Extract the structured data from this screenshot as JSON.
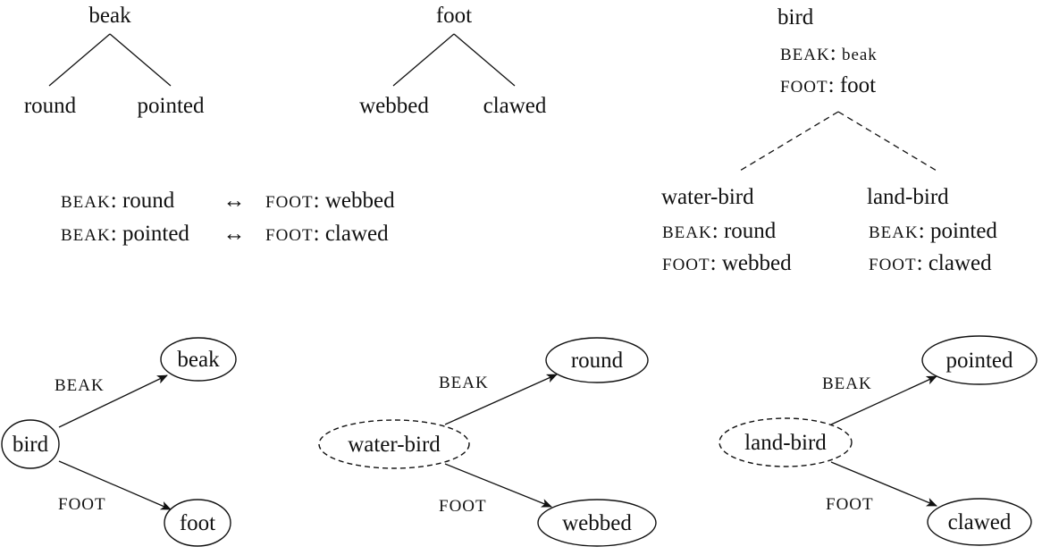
{
  "trees": {
    "beak": {
      "root": "beak",
      "left": "round",
      "right": "pointed"
    },
    "foot": {
      "root": "foot",
      "left": "webbed",
      "right": "clawed"
    },
    "bird": {
      "root": "bird",
      "features": [
        {
          "attr": "BEAK",
          "value": "beak"
        },
        {
          "attr": "FOOT",
          "value": "foot"
        }
      ],
      "children": [
        {
          "type": "water-bird",
          "features": [
            {
              "attr": "BEAK",
              "value": "round"
            },
            {
              "attr": "FOOT",
              "value": "webbed"
            }
          ]
        },
        {
          "type": "land-bird",
          "features": [
            {
              "attr": "BEAK",
              "value": "pointed"
            },
            {
              "attr": "FOOT",
              "value": "clawed"
            }
          ]
        }
      ]
    }
  },
  "constraints": [
    {
      "left_attr": "BEAK",
      "left_value": "round",
      "symbol": "↔",
      "right_attr": "FOOT",
      "right_value": "webbed"
    },
    {
      "left_attr": "BEAK",
      "left_value": "pointed",
      "symbol": "↔",
      "right_attr": "FOOT",
      "right_value": "clawed"
    }
  ],
  "graphs": [
    {
      "source": "bird",
      "beak_label": "BEAK",
      "beak_target": "beak",
      "foot_label": "FOOT",
      "foot_target": "foot"
    },
    {
      "source": "water-bird",
      "beak_label": "BEAK",
      "beak_target": "round",
      "foot_label": "FOOT",
      "foot_target": "webbed"
    },
    {
      "source": "land-bird",
      "beak_label": "BEAK",
      "beak_target": "pointed",
      "foot_label": "FOOT",
      "foot_target": "clawed"
    }
  ]
}
